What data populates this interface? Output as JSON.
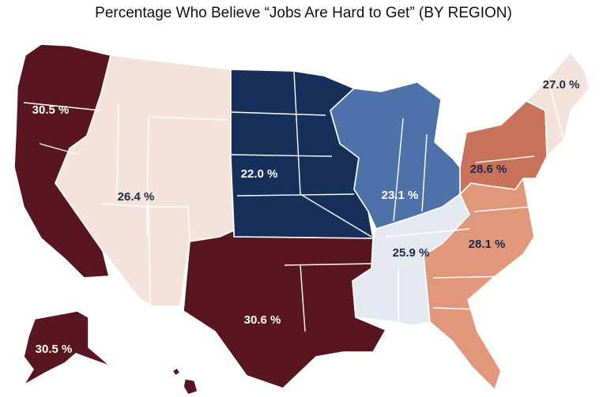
{
  "title": "Percentage Who Believe “Jobs Are Hard to Get” (BY REGION)",
  "colors": {
    "pacific": "#5a1620",
    "mountain": "#f3e3da",
    "west_north_central": "#162f5b",
    "east_north_central": "#4d72aa",
    "east_south_central": "#e3e9ef",
    "west_south_central": "#5a1620",
    "south_atlantic": "#e0977a",
    "middle_atlantic": "#c9725a",
    "new_england": "#f3e3da"
  },
  "regions": [
    {
      "id": "pacific",
      "label": "30.5 %",
      "value": 30.5
    },
    {
      "id": "mountain",
      "label": "26.4 %",
      "value": 26.4
    },
    {
      "id": "west_north_central",
      "label": "22.0 %",
      "value": 22.0
    },
    {
      "id": "east_north_central",
      "label": "23.1 %",
      "value": 23.1
    },
    {
      "id": "east_south_central",
      "label": "25.9 %",
      "value": 25.9
    },
    {
      "id": "west_south_central",
      "label": "30.6 %",
      "value": 30.6
    },
    {
      "id": "south_atlantic",
      "label": "28.1 %",
      "value": 28.1
    },
    {
      "id": "middle_atlantic",
      "label": "28.6 %",
      "value": 28.6
    },
    {
      "id": "new_england",
      "label": "27.0 %",
      "value": 27.0
    },
    {
      "id": "alaska",
      "label": "30.5 %",
      "value": 30.5
    }
  ]
}
